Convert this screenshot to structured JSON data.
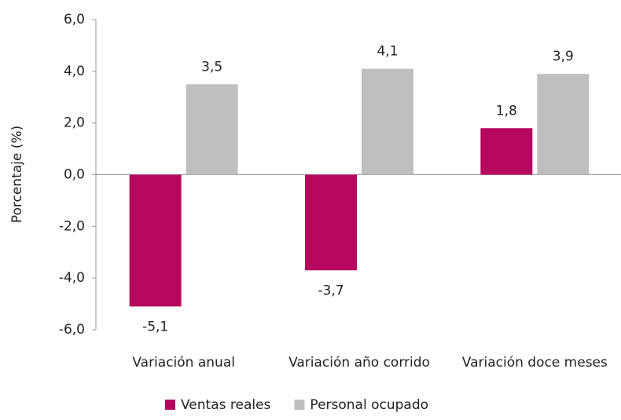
{
  "chart_data": {
    "type": "bar",
    "y_axis_label": "Porcentaje (%)",
    "categories": [
      "Variación anual",
      "Variación año corrido",
      "Variación doce meses"
    ],
    "series": [
      {
        "name": "Ventas reales",
        "color": "#b5075e",
        "values": [
          -5.1,
          -3.7,
          1.8
        ],
        "value_labels": [
          "-5,1",
          "-3,7",
          "1,8"
        ]
      },
      {
        "name": "Personal ocupado",
        "color": "#bfbfbf",
        "values": [
          3.5,
          4.1,
          3.9
        ],
        "value_labels": [
          "3,5",
          "4,1",
          "3,9"
        ]
      }
    ],
    "ylim": [
      -6,
      6
    ],
    "yticks": [
      {
        "value": -6,
        "label": "-6,0"
      },
      {
        "value": -4,
        "label": "-4,0"
      },
      {
        "value": -2,
        "label": "-2,0"
      },
      {
        "value": 0,
        "label": "0,0"
      },
      {
        "value": 2,
        "label": "2,0"
      },
      {
        "value": 4,
        "label": "4,0"
      },
      {
        "value": 6,
        "label": "6,0"
      }
    ],
    "grid": false,
    "legend": "bottom"
  }
}
